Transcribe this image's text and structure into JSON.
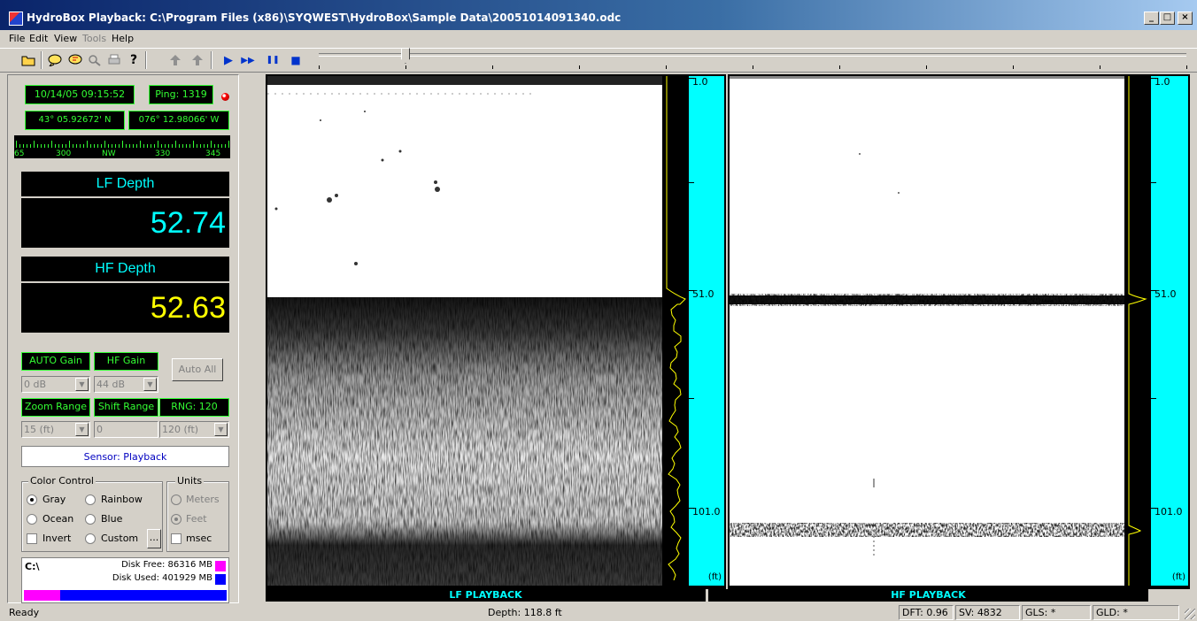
{
  "window": {
    "title": "HydroBox Playback: C:\\Program Files (x86)\\SYQWEST\\HydroBox\\Sample Data\\20051014091340.odc",
    "min_label": "_",
    "max_label": "□",
    "close_label": "×"
  },
  "menu": [
    "File",
    "Edit",
    "View",
    "Tools",
    "Help"
  ],
  "toolbar": {
    "icons": [
      "open-folder-icon",
      "speak-icon",
      "speak-alt-icon",
      "zoom-icon",
      "print-icon",
      "help-icon",
      "mark-icon",
      "mark-alt-icon",
      "play-icon",
      "fast-forward-icon",
      "pause-icon",
      "stop-icon"
    ],
    "play_glyph": "▶",
    "ff_glyph": "▶▶",
    "pause_glyph": "❚❚",
    "stop_glyph": "■",
    "playback_position": 0.1
  },
  "info": {
    "datetime": "10/14/05 09:15:52",
    "ping": "Ping: 1319",
    "latitude": "43° 05.92672' N",
    "longitude": "076° 12.98066' W",
    "compass_labels": [
      "65",
      "300",
      "NW",
      "330",
      "345"
    ]
  },
  "lf": {
    "title": "LF Depth",
    "value": "52.74",
    "color": "#00ffff"
  },
  "hf": {
    "title": "HF Depth",
    "value": "52.63",
    "color": "#ffff00"
  },
  "gain": {
    "auto_label": "AUTO Gain",
    "hf_label": "HF Gain",
    "auto_all": "Auto All",
    "auto_value": "0 dB",
    "hf_value": "44 dB"
  },
  "range": {
    "zoom_label": "Zoom Range",
    "shift_label": "Shift Range",
    "rng_label": "RNG: 120",
    "zoom_value": "15 (ft)",
    "shift_value": "0",
    "rng_value": "120 (ft)"
  },
  "sensor": "Sensor: Playback",
  "color_control": {
    "legend": "Color Control",
    "options": [
      "Gray",
      "Rainbow",
      "Ocean",
      "Blue",
      "Custom"
    ],
    "selected": "Gray",
    "invert": "Invert",
    "browse": "..."
  },
  "units": {
    "legend": "Units",
    "meters": "Meters",
    "feet": "Feet",
    "msec": "msec",
    "selected": "Feet"
  },
  "disk": {
    "drive": "C:\\",
    "free": "Disk Free: 86316 MB",
    "used": "Disk Used: 401929 MB",
    "free_color": "#ff00ff",
    "used_color": "#0000ff",
    "free_fraction": 0.177
  },
  "scale": {
    "marks": [
      "1.0",
      "51.0",
      "101.0"
    ],
    "unit": "(ft)"
  },
  "channels": {
    "lf_label": "LF PLAYBACK",
    "hf_label": "HF PLAYBACK"
  },
  "status": {
    "ready": "Ready",
    "depth": "Depth: 118.8 ft",
    "dft": "DFT: 0.96",
    "sv": "SV: 4832",
    "gls": "GLS: *",
    "gld": "GLD: *"
  }
}
